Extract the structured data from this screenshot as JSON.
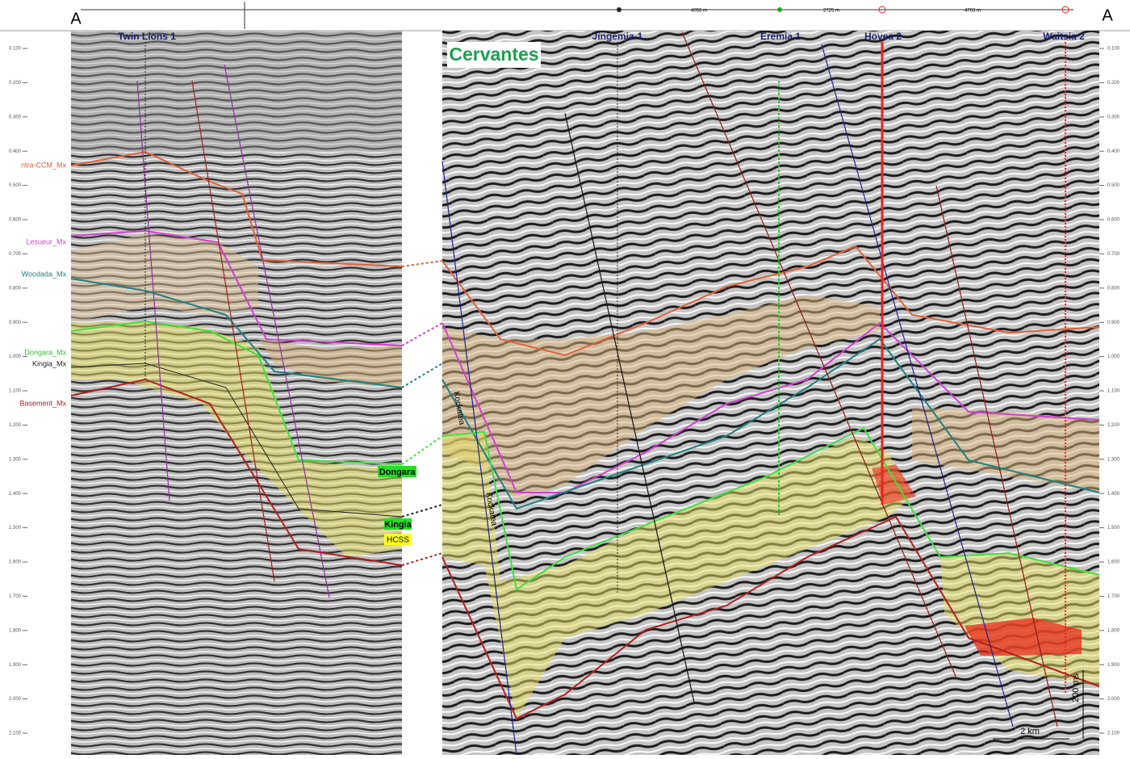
{
  "section": {
    "start_label": "A",
    "end_label": "A",
    "field_label": "Cervantes"
  },
  "wells": [
    "Twin Lions 1",
    "Jingemia-1",
    "Eremia 1",
    "Hovea 2",
    "Waitsia 2"
  ],
  "horizons": [
    "ntra-CCM_Mx",
    "Lesueur_Mx",
    "Woodada_Mx",
    "Dongara_Mx",
    "Kingia_Mx",
    "Basement_Mx"
  ],
  "callouts": [
    "Dongara",
    "Kingia",
    "HCSS"
  ],
  "formation_labels": [
    "Kockatea",
    "Kockatea"
  ],
  "distances": [
    "4056 m",
    "2725 m",
    "4763 m"
  ],
  "scale": {
    "horizontal": "2 km",
    "vertical": "200 ms"
  },
  "time_axis": [
    "0.100",
    "0.200",
    "0.300",
    "0.400",
    "0.500",
    "0.600",
    "0.700",
    "0.800",
    "0.900",
    "1.000",
    "1.100",
    "1.200",
    "1.300",
    "1.400",
    "1.500",
    "1.600",
    "1.700",
    "1.800",
    "1.900",
    "2.000",
    "2.100"
  ]
}
